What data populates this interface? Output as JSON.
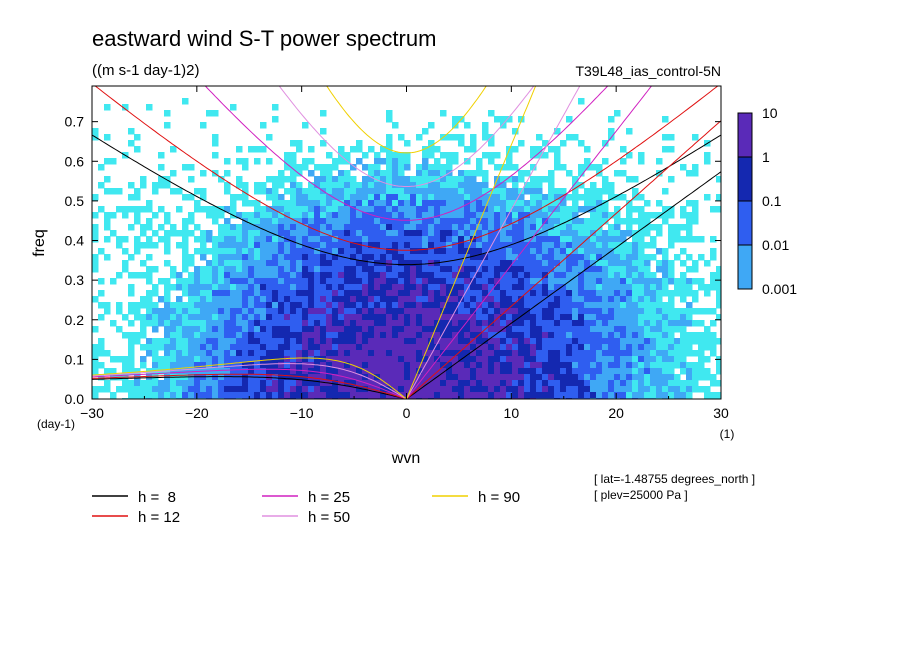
{
  "chart_data": {
    "type": "heatmap",
    "title": "eastward wind S-T power spectrum",
    "units_label": "((m s-1 day-1)2)",
    "experiment": "T39L48_ias_control-5N",
    "xlabel": "wvn",
    "ylabel": "freq",
    "x_unit_label": "(1)",
    "y_unit_label": "(day-1)",
    "xlim": [
      -30,
      30
    ],
    "ylim": [
      0,
      0.79
    ],
    "x_ticks": [
      -30,
      -20,
      -10,
      0,
      10,
      20,
      30
    ],
    "x_tick_labels": [
      "-30",
      "-20",
      "-10",
      "0",
      "10",
      "20",
      "30"
    ],
    "y_ticks": [
      0,
      0.1,
      0.2,
      0.3,
      0.4,
      0.5,
      0.6,
      0.7
    ],
    "y_tick_labels": [
      "0.0",
      "0.1",
      "0.2",
      "0.3",
      "0.4",
      "0.5",
      "0.6",
      "0.7"
    ],
    "colorbar": {
      "levels": [
        "10",
        "1",
        "0.1",
        "0.01",
        "0.001"
      ],
      "colors": [
        "#5a2ab8",
        "#1428b0",
        "#2f5ef0",
        "#3fa8f5",
        "#40e8f0"
      ]
    },
    "legend": [
      {
        "label": "h =  8",
        "color": "#000000",
        "h": 8
      },
      {
        "label": "h = 12",
        "color": "#e01010",
        "h": 12
      },
      {
        "label": "h = 25",
        "color": "#d020c0",
        "h": 25
      },
      {
        "label": "h = 50",
        "color": "#e090e0",
        "h": 50
      },
      {
        "label": "h = 90",
        "color": "#f0d000",
        "h": 90
      }
    ],
    "annotations": [
      "[ lat=-1.48755 degrees_north ]",
      "[ plev=25000 Pa ]"
    ]
  }
}
